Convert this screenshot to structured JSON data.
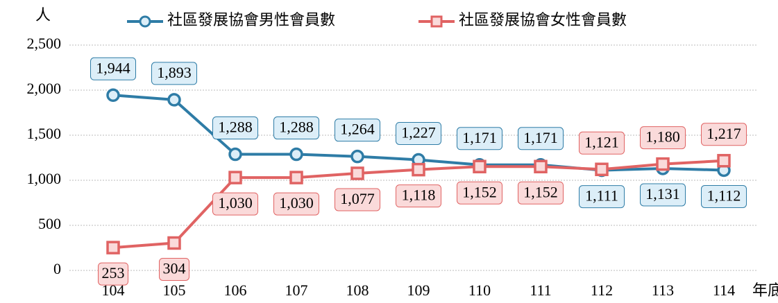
{
  "chart_data": {
    "type": "line",
    "y_label": "人",
    "x_label": "年底",
    "categories": [
      "104",
      "105",
      "106",
      "107",
      "108",
      "109",
      "110",
      "111",
      "112",
      "113",
      "114"
    ],
    "series": [
      {
        "name": "社區發展協會男性會員數",
        "color": "#2e7ca6",
        "label_fill": "#dcEEF8",
        "values": [
          1944,
          1893,
          1288,
          1288,
          1264,
          1227,
          1171,
          1171,
          1111,
          1131,
          1112
        ],
        "value_labels": [
          "1,944",
          "1,893",
          "1,288",
          "1,288",
          "1,264",
          "1,227",
          "1,171",
          "1,171",
          "1,111",
          "1,131",
          "1,112"
        ]
      },
      {
        "name": "社區發展協會女性會員數",
        "color": "#e06363",
        "label_fill": "#fadada",
        "values": [
          253,
          304,
          1030,
          1030,
          1077,
          1118,
          1152,
          1152,
          1121,
          1180,
          1217
        ],
        "value_labels": [
          "253",
          "304",
          "1,030",
          "1,030",
          "1,077",
          "1,118",
          "1,152",
          "1,152",
          "1,121",
          "1,180",
          "1,217"
        ]
      }
    ],
    "ylim": [
      0,
      2500
    ],
    "yticks": [
      0,
      500,
      {
        "value": 1000,
        "label": "1,000"
      },
      {
        "value": 1500,
        "label": "1,500"
      },
      {
        "value": 2000,
        "label": "2,000"
      },
      {
        "value": 2500,
        "label": "2,500"
      }
    ],
    "grid": true
  }
}
